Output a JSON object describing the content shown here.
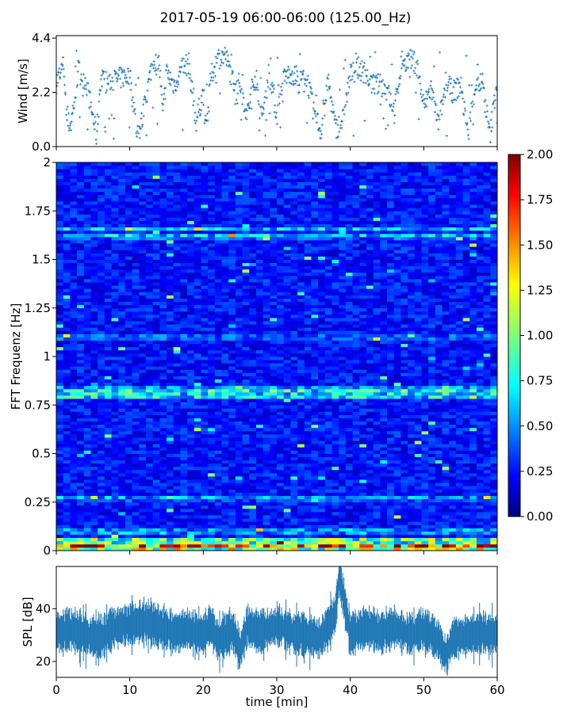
{
  "title": "2017-05-19 06:00-06:00 (125.00_Hz)",
  "chart_data": [
    {
      "type": "scatter",
      "ylabel": "Wind [m/s]",
      "xlim": [
        0,
        60
      ],
      "ylim": [
        0,
        4.5
      ],
      "yticks": [
        0.0,
        2.2,
        4.4
      ],
      "ytick_labels": [
        "0.0",
        "2.2",
        "4.4"
      ],
      "marker": "+",
      "color": "#1f77b4",
      "series": [
        {
          "x": [
            0,
            1,
            1.5,
            2,
            3,
            4,
            5,
            5.5,
            6,
            7,
            8,
            9,
            10,
            11,
            11.5,
            12,
            13,
            14,
            14.5,
            15,
            16,
            17,
            18,
            19,
            20,
            20.5,
            21,
            22,
            23,
            24,
            25,
            26,
            27,
            28,
            29,
            30,
            31,
            32,
            33,
            34,
            35,
            36,
            37,
            38,
            39,
            40,
            41,
            42,
            43,
            44,
            45,
            46,
            47,
            48,
            49,
            50,
            51,
            52,
            53,
            54,
            55,
            56,
            57,
            58,
            59,
            60
          ],
          "y": [
            2.6,
            3.3,
            1.0,
            0.9,
            3.1,
            2.7,
            1.2,
            0.4,
            2.7,
            2.6,
            2.7,
            2.8,
            2.9,
            0.5,
            0.8,
            1.6,
            3.3,
            3.4,
            1.2,
            3.0,
            2.5,
            3.1,
            3.4,
            1.0,
            2.2,
            0.6,
            2.8,
            3.6,
            3.7,
            2.7,
            2.5,
            1.3,
            2.9,
            1.0,
            3.2,
            1.2,
            2.8,
            3.0,
            2.6,
            2.9,
            1.5,
            0.6,
            2.7,
            0.7,
            1.1,
            2.9,
            3.2,
            3.0,
            2.5,
            2.5,
            2.3,
            1.4,
            3.5,
            3.5,
            3.4,
            1.6,
            2.4,
            0.8,
            2.6,
            2.2,
            2.5,
            0.5,
            2.5,
            2.6,
            0.4,
            2.8
          ]
        }
      ]
    },
    {
      "type": "heatmap",
      "ylabel": "FFT Frequenz [Hz]",
      "xlim": [
        0,
        60
      ],
      "ylim": [
        0,
        2
      ],
      "yticks": [
        0,
        0.25,
        0.5,
        0.75,
        1,
        1.25,
        1.5,
        1.75,
        2
      ],
      "ytick_labels": [
        "0",
        "0.25",
        "0.5",
        "0.75",
        "1",
        "1.25",
        "1.5",
        "1.75",
        "2"
      ],
      "colormap": "jet",
      "clim": [
        0.0,
        2.0
      ],
      "colorbar_ticks": [
        0.0,
        0.25,
        0.5,
        0.75,
        1.0,
        1.25,
        1.5,
        1.75,
        2.0
      ],
      "colorbar_labels": [
        "0.00",
        "0.25",
        "0.50",
        "0.75",
        "1.00",
        "1.25",
        "1.50",
        "1.75",
        "2.00"
      ],
      "bands": [
        {
          "freq": 0.02,
          "level": 1.8
        },
        {
          "freq": 0.05,
          "level": 1.2
        },
        {
          "freq": 0.1,
          "level": 0.7
        },
        {
          "freq": 0.27,
          "level": 0.6
        },
        {
          "freq": 0.8,
          "level": 0.9
        },
        {
          "freq": 0.83,
          "level": 0.85
        },
        {
          "freq": 1.1,
          "level": 0.55
        },
        {
          "freq": 1.62,
          "level": 0.7
        },
        {
          "freq": 1.66,
          "level": 0.65
        }
      ],
      "background_level": 0.28
    },
    {
      "type": "line",
      "ylabel": "SPL [dB]",
      "xlabel": "time [min]",
      "xlim": [
        0,
        60
      ],
      "ylim": [
        14,
        56
      ],
      "yticks": [
        20,
        40
      ],
      "ytick_labels": [
        "20",
        "40"
      ],
      "xticks": [
        0,
        10,
        20,
        30,
        40,
        50,
        60
      ],
      "xtick_labels": [
        "0",
        "10",
        "20",
        "30",
        "40",
        "50",
        "60"
      ],
      "color": "#1f77b4",
      "series": [
        {
          "x": [
            0,
            2,
            4,
            6,
            8,
            10,
            12,
            14,
            16,
            18,
            20,
            21,
            22,
            24,
            25,
            26,
            28,
            30,
            32,
            34,
            36,
            38,
            38.5,
            40,
            42,
            44,
            46,
            48,
            50,
            52,
            53,
            54,
            56,
            58,
            60
          ],
          "y": [
            31,
            32,
            30,
            29,
            33,
            34,
            35,
            33,
            31,
            32,
            30,
            34,
            28,
            32,
            24,
            33,
            31,
            34,
            31,
            30,
            29,
            38,
            53,
            30,
            33,
            31,
            33,
            30,
            32,
            28,
            22,
            29,
            30,
            31,
            30
          ],
          "band_halfwidth": 5
        }
      ]
    }
  ]
}
